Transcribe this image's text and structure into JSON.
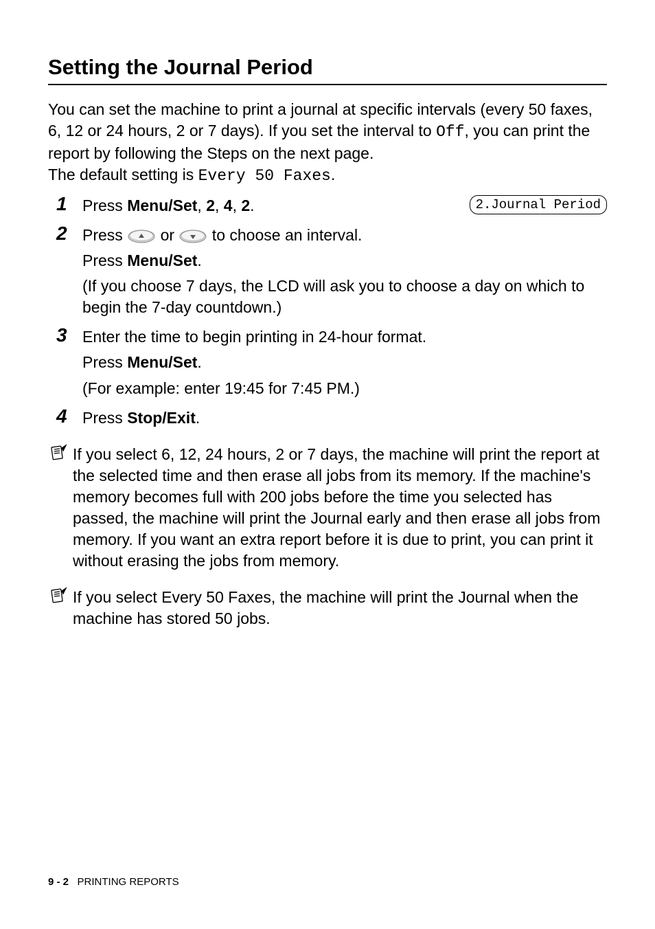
{
  "section_title": "Setting the Journal Period",
  "intro": {
    "line1": "You can set the machine to print a journal at specific intervals (every 50 faxes, 6, 12 or 24 hours, 2 or 7 days). If you set the interval to ",
    "mono1": "Off",
    "line2": ", you can print the report by following the Steps on the next page.",
    "line3": "The default setting is ",
    "mono2": "Every 50 Faxes",
    "line4": "."
  },
  "lcd": "2.Journal Period",
  "steps": [
    {
      "num": "1",
      "parts": [
        {
          "t": "Press ",
          "bold": false
        },
        {
          "t": "Menu/Set",
          "bold": true
        },
        {
          "t": ", ",
          "bold": false
        },
        {
          "t": "2",
          "bold": true
        },
        {
          "t": ", ",
          "bold": false
        },
        {
          "t": "4",
          "bold": true
        },
        {
          "t": ", ",
          "bold": false
        },
        {
          "t": "2",
          "bold": true
        },
        {
          "t": ".",
          "bold": false
        }
      ]
    },
    {
      "num": "2",
      "lines": [
        {
          "html": "Press {UP} or {DOWN} to choose an interval."
        },
        {
          "html": "Press <b>Menu/Set</b>."
        },
        {
          "html": "(If you choose 7 days, the LCD will ask you to choose a day on which to begin the 7-day countdown.)"
        }
      ]
    },
    {
      "num": "3",
      "lines": [
        {
          "html": "Enter the time to begin printing in 24-hour format."
        },
        {
          "html": "Press <b>Menu/Set</b>."
        },
        {
          "html": "(For example: enter 19:45 for 7:45 PM.)"
        }
      ]
    },
    {
      "num": "4",
      "lines": [
        {
          "html": "Press <b>Stop/Exit</b>."
        }
      ]
    }
  ],
  "notes": [
    "If you select 6, 12, 24 hours, 2 or 7 days, the machine will print the report at the selected time and then erase all jobs from its memory. If the machine's memory becomes full with 200 jobs before the time you selected has passed, the machine will print the Journal early and then erase all jobs from memory. If you want an extra report before it is due to print, you can print it without erasing the jobs from memory.",
    "If you select Every 50 Faxes, the machine will print the Journal when the machine has stored 50 jobs."
  ],
  "footer": {
    "page": "9 - 2",
    "label": "PRINTING REPORTS"
  }
}
